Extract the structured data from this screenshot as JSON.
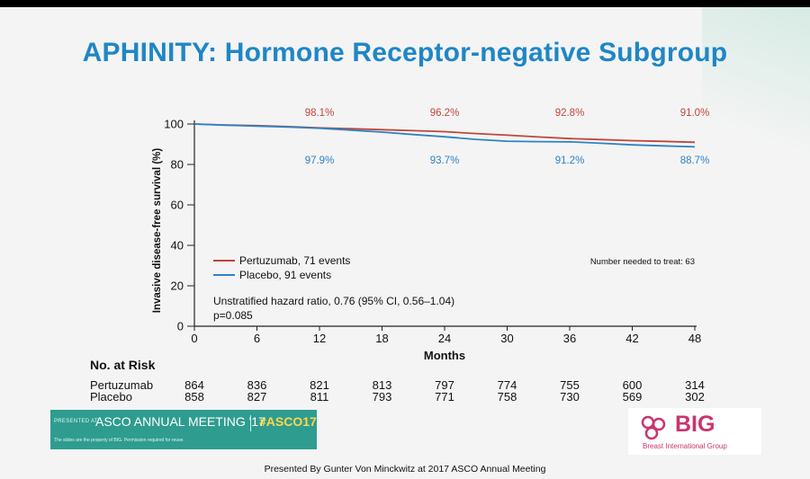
{
  "slide": {
    "title": "APHINITY: Hormone Receptor-negative Subgroup",
    "footer": "Presented By Gunter Von Minckwitz at 2017 ASCO Annual Meeting"
  },
  "chart_data": {
    "type": "line",
    "xlabel": "Months",
    "ylabel": "Invasive disease-free survival (%)",
    "xlim": [
      0,
      48
    ],
    "ylim": [
      0,
      100
    ],
    "xticks": [
      0,
      6,
      12,
      18,
      24,
      30,
      36,
      42,
      48
    ],
    "yticks": [
      0,
      20,
      40,
      60,
      80,
      100
    ],
    "series": [
      {
        "name": "Pertuzumab, 71 events",
        "color": "#c0463a",
        "x": [
          0,
          3,
          6,
          9,
          12,
          15,
          18,
          21,
          24,
          27,
          30,
          33,
          36,
          39,
          42,
          45,
          48
        ],
        "y": [
          100,
          99.5,
          99.2,
          98.7,
          98.1,
          97.7,
          97.2,
          96.7,
          96.2,
          95.3,
          94.5,
          93.6,
          92.8,
          92.3,
          91.8,
          91.4,
          91.0
        ]
      },
      {
        "name": "Placebo, 91 events",
        "color": "#2e82c4",
        "x": [
          0,
          3,
          6,
          9,
          12,
          15,
          18,
          21,
          24,
          27,
          30,
          33,
          36,
          39,
          42,
          45,
          48
        ],
        "y": [
          100,
          99.4,
          99.0,
          98.5,
          97.9,
          97.0,
          96.0,
          94.8,
          93.7,
          92.4,
          91.5,
          91.3,
          91.2,
          90.5,
          89.7,
          89.2,
          88.7
        ]
      }
    ],
    "annotations_top": [
      {
        "x": 12,
        "text": "98.1%"
      },
      {
        "x": 24,
        "text": "96.2%"
      },
      {
        "x": 36,
        "text": "92.8%"
      },
      {
        "x": 48,
        "text": "91.0%"
      }
    ],
    "annotations_bottom": [
      {
        "x": 12,
        "text": "97.9%"
      },
      {
        "x": 24,
        "text": "93.7%"
      },
      {
        "x": 36,
        "text": "91.2%"
      },
      {
        "x": 48,
        "text": "88.7%"
      }
    ],
    "nnt": "Number needed to treat: 63",
    "hazard": "Unstratified hazard ratio, 0.76 (95% CI, 0.56–1.04)",
    "pvalue": "p=0.085",
    "legend_position": "bottom-left"
  },
  "at_risk": {
    "title": "No. at Risk",
    "rows": [
      {
        "label": "Pertuzumab",
        "values": [
          864,
          836,
          821,
          813,
          797,
          774,
          755,
          600,
          314
        ]
      },
      {
        "label": "Placebo",
        "values": [
          858,
          827,
          811,
          793,
          771,
          758,
          730,
          569,
          302
        ]
      }
    ]
  },
  "banner": {
    "presented": "PRESENTED AT:",
    "meeting": "ASCO ANNUAL MEETING '17",
    "hashtag": "#ASCO17",
    "disclaimer": "The slides are the property of BIG. Permission required for reuse."
  },
  "logo": {
    "name": "BIG",
    "subtitle": "Breast International Group",
    "color": "#c9356e"
  },
  "colors": {
    "title": "#1f86c6",
    "banner": "#2f9c90",
    "hashtag": "#ffd84a"
  }
}
